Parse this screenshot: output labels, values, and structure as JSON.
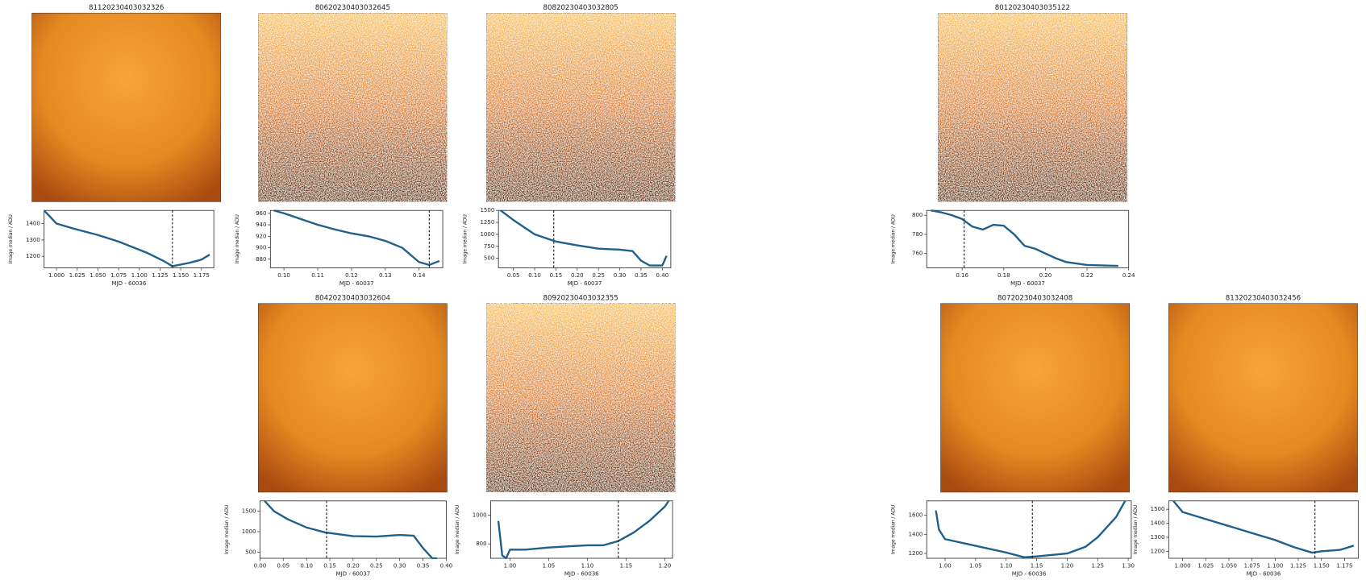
{
  "chart_data": [
    {
      "type": "line",
      "title": "81120230403032326",
      "xlabel": "MJD - 60036",
      "ylabel": "Image median / ADU",
      "color": "#1f5f8b",
      "x": [
        0.985,
        1.0,
        1.02,
        1.05,
        1.075,
        1.09,
        1.11,
        1.13,
        1.14,
        1.16,
        1.175,
        1.185
      ],
      "values": [
        1480,
        1400,
        1370,
        1330,
        1290,
        1260,
        1220,
        1170,
        1140,
        1160,
        1180,
        1210
      ],
      "xlim": [
        0.985,
        1.19
      ],
      "ylim": [
        1130,
        1480
      ],
      "xticks": [
        {
          "value": 1.0,
          "label": "1.000"
        },
        1.025,
        {
          "value": 1.05,
          "label": "1.050"
        },
        1.075,
        {
          "value": 1.1,
          "label": "1.100"
        },
        1.125,
        {
          "value": 1.15,
          "label": "1.150"
        },
        1.175
      ],
      "yticks": [
        1200,
        1300,
        1400
      ],
      "vline": 1.14
    },
    {
      "type": "line",
      "title": "80620230403032645",
      "xlabel": "MJD - 60037",
      "ylabel": "Image median / ADU",
      "color": "#1f5f8b",
      "x": [
        0.097,
        0.1,
        0.105,
        0.11,
        0.115,
        0.12,
        0.125,
        0.13,
        0.135,
        0.14,
        0.143,
        0.146
      ],
      "values": [
        965,
        960,
        950,
        940,
        932,
        925,
        920,
        912,
        900,
        875,
        870,
        877
      ],
      "xlim": [
        0.096,
        0.147
      ],
      "ylim": [
        865,
        965
      ],
      "xticks": [
        {
          "value": 0.1,
          "label": "0.10"
        },
        0.11,
        0.12,
        0.13,
        0.14
      ],
      "yticks": [
        880,
        900,
        920,
        940,
        960
      ],
      "vline": 0.143
    },
    {
      "type": "line",
      "title": "80820230403032805",
      "xlabel": "MJD - 60037",
      "ylabel": "Image median / ADU",
      "color": "#1f5f8b",
      "x": [
        0.02,
        0.05,
        0.1,
        0.15,
        0.2,
        0.25,
        0.3,
        0.33,
        0.35,
        0.37,
        0.4,
        0.41
      ],
      "values": [
        1500,
        1300,
        1000,
        850,
        770,
        700,
        680,
        650,
        450,
        350,
        350,
        550
      ],
      "xlim": [
        0.015,
        0.42
      ],
      "ylim": [
        300,
        1500
      ],
      "xticks": [
        0.05,
        {
          "value": 0.1,
          "label": "0.10"
        },
        0.15,
        {
          "value": 0.2,
          "label": "0.20"
        },
        0.25,
        {
          "value": 0.3,
          "label": "0.30"
        },
        0.35,
        {
          "value": 0.4,
          "label": "0.40"
        }
      ],
      "yticks": [
        500,
        750,
        1000,
        1250,
        1500
      ],
      "vline": 0.145
    },
    {
      "type": "line",
      "title": "80120230403035122",
      "xlabel": "MJD - 60037",
      "ylabel": "Image median / ADU",
      "color": "#1f5f8b",
      "x": [
        0.145,
        0.15,
        0.155,
        0.16,
        0.165,
        0.17,
        0.175,
        0.18,
        0.185,
        0.19,
        0.195,
        0.2,
        0.205,
        0.21,
        0.22,
        0.235
      ],
      "values": [
        805,
        803,
        800,
        796,
        788,
        785,
        790,
        789,
        780,
        768,
        765,
        760,
        755,
        751,
        748,
        747
      ],
      "xlim": [
        0.143,
        0.24
      ],
      "ylim": [
        745,
        805
      ],
      "xticks": [
        0.16,
        0.18,
        {
          "value": 0.2,
          "label": "0.20"
        },
        0.22,
        0.24
      ],
      "yticks": [
        760,
        780,
        800
      ],
      "vline": 0.161
    },
    {
      "type": "line",
      "title": "80420230403032604",
      "xlabel": "MJD - 60037",
      "ylabel": "Image median / ADU",
      "color": "#1f5f8b",
      "x": [
        0.01,
        0.03,
        0.06,
        0.1,
        0.14,
        0.2,
        0.25,
        0.3,
        0.33,
        0.35,
        0.37,
        0.38
      ],
      "values": [
        1750,
        1500,
        1300,
        1100,
        980,
        890,
        880,
        920,
        900,
        600,
        350,
        350
      ],
      "xlim": [
        0,
        0.4
      ],
      "ylim": [
        350,
        1750
      ],
      "xticks": [
        {
          "value": 0,
          "label": "0.00"
        },
        0.05,
        {
          "value": 0.1,
          "label": "0.10"
        },
        0.15,
        {
          "value": 0.2,
          "label": "0.20"
        },
        0.25,
        {
          "value": 0.3,
          "label": "0.30"
        },
        0.35,
        {
          "value": 0.4,
          "label": "0.40"
        }
      ],
      "yticks": [
        500,
        1000,
        1500
      ],
      "vline": 0.143
    },
    {
      "type": "line",
      "title": "80920230403032355",
      "xlabel": "MJD - 60036",
      "ylabel": "Image median / ADU",
      "color": "#1f5f8b",
      "x": [
        0.985,
        0.99,
        0.995,
        1.0,
        1.02,
        1.05,
        1.08,
        1.1,
        1.12,
        1.14,
        1.16,
        1.18,
        1.2,
        1.205
      ],
      "values": [
        960,
        720,
        700,
        760,
        760,
        775,
        785,
        790,
        790,
        820,
        880,
        960,
        1060,
        1100
      ],
      "xlim": [
        0.975,
        1.21
      ],
      "ylim": [
        700,
        1100
      ],
      "xticks": [
        {
          "value": 1.0,
          "label": "1.00"
        },
        1.05,
        {
          "value": 1.1,
          "label": "1.10"
        },
        1.15,
        {
          "value": 1.2,
          "label": "1.20"
        }
      ],
      "yticks": [
        800,
        1000
      ],
      "vline": 1.14
    },
    {
      "type": "line",
      "title": "80720230403032408",
      "xlabel": "MJD - 60036",
      "ylabel": "Image median / ADU",
      "color": "#1f5f8b",
      "x": [
        0.985,
        0.99,
        1.0,
        1.05,
        1.1,
        1.13,
        1.15,
        1.2,
        1.23,
        1.25,
        1.28,
        1.295
      ],
      "values": [
        1650,
        1450,
        1350,
        1280,
        1210,
        1160,
        1170,
        1200,
        1270,
        1370,
        1580,
        1750
      ],
      "xlim": [
        0.97,
        1.305
      ],
      "ylim": [
        1150,
        1750
      ],
      "xticks": [
        {
          "value": 1.0,
          "label": "1.00"
        },
        1.05,
        {
          "value": 1.1,
          "label": "1.10"
        },
        1.15,
        {
          "value": 1.2,
          "label": "1.20"
        },
        1.25,
        {
          "value": 1.3,
          "label": "1.30"
        }
      ],
      "yticks": [
        1200,
        1400,
        1600
      ],
      "vline": 1.143
    },
    {
      "type": "line",
      "title": "81320230403032456",
      "xlabel": "MJD - 60036",
      "ylabel": "Image median / ADU",
      "color": "#1f5f8b",
      "x": [
        0.99,
        1.0,
        1.02,
        1.05,
        1.075,
        1.1,
        1.12,
        1.14,
        1.15,
        1.17,
        1.185
      ],
      "values": [
        1560,
        1480,
        1440,
        1380,
        1330,
        1280,
        1230,
        1190,
        1200,
        1210,
        1240
      ],
      "xlim": [
        0.985,
        1.19
      ],
      "ylim": [
        1150,
        1560
      ],
      "xticks": [
        {
          "value": 1.0,
          "label": "1.000"
        },
        1.025,
        {
          "value": 1.05,
          "label": "1.050"
        },
        1.075,
        {
          "value": 1.1,
          "label": "1.100"
        },
        1.125,
        {
          "value": 1.15,
          "label": "1.150"
        },
        1.175
      ],
      "yticks": [
        1200,
        1300,
        1400,
        1500
      ],
      "vline": 1.143
    }
  ]
}
